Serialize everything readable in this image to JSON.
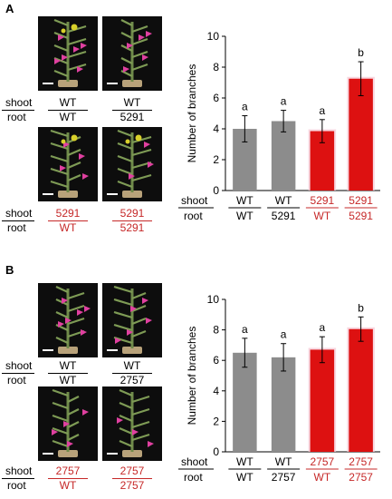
{
  "panels": [
    {
      "letter": "A",
      "row_labels": {
        "shoot": "shoot",
        "root": "root"
      },
      "photo_grafts": [
        {
          "shoot": "WT",
          "root": "WT",
          "red": false
        },
        {
          "shoot": "WT",
          "root": "5291",
          "red": false
        },
        {
          "shoot": "5291",
          "root": "WT",
          "red": true
        },
        {
          "shoot": "5291",
          "root": "5291",
          "red": true
        }
      ],
      "axis_grafts": [
        {
          "shoot": "WT",
          "root": "WT",
          "red": false
        },
        {
          "shoot": "WT",
          "root": "5291",
          "red": false
        },
        {
          "shoot": "5291",
          "root": "WT",
          "red": true
        },
        {
          "shoot": "5291",
          "root": "5291",
          "red": true
        }
      ]
    },
    {
      "letter": "B",
      "row_labels": {
        "shoot": "shoot",
        "root": "root"
      },
      "photo_grafts": [
        {
          "shoot": "WT",
          "root": "WT",
          "red": false
        },
        {
          "shoot": "WT",
          "root": "2757",
          "red": false
        },
        {
          "shoot": "2757",
          "root": "WT",
          "red": true
        },
        {
          "shoot": "2757",
          "root": "2757",
          "red": true
        }
      ],
      "axis_grafts": [
        {
          "shoot": "WT",
          "root": "WT",
          "red": false
        },
        {
          "shoot": "WT",
          "root": "2757",
          "red": false
        },
        {
          "shoot": "2757",
          "root": "WT",
          "red": true
        },
        {
          "shoot": "2757",
          "root": "2757",
          "red": true
        }
      ]
    }
  ],
  "chart_data": [
    {
      "type": "bar",
      "ylabel": "Number of branches",
      "ylim": [
        0,
        10
      ],
      "yticks": [
        0,
        2,
        4,
        6,
        8,
        10
      ],
      "values": [
        4.0,
        4.5,
        3.85,
        7.25
      ],
      "errors": [
        0.85,
        0.7,
        0.75,
        1.1
      ],
      "significance": [
        "a",
        "a",
        "a",
        "b"
      ],
      "bar_colors": [
        "#8c8c8c",
        "#8c8c8c",
        "#dd1111",
        "#dd1111"
      ],
      "grid": false
    },
    {
      "type": "bar",
      "ylabel": "Number of branches",
      "ylim": [
        0,
        10
      ],
      "yticks": [
        0,
        2,
        4,
        6,
        8,
        10
      ],
      "values": [
        6.5,
        6.2,
        6.7,
        8.05
      ],
      "errors": [
        0.95,
        0.9,
        0.85,
        0.8
      ],
      "significance": [
        "a",
        "a",
        "a",
        "b"
      ],
      "bar_colors": [
        "#8c8c8c",
        "#8c8c8c",
        "#dd1111",
        "#dd1111"
      ],
      "grid": false
    }
  ],
  "colors": {
    "wt": "#8c8c8c",
    "mutant": "#dd1111",
    "mutant_text": "#c62828"
  }
}
